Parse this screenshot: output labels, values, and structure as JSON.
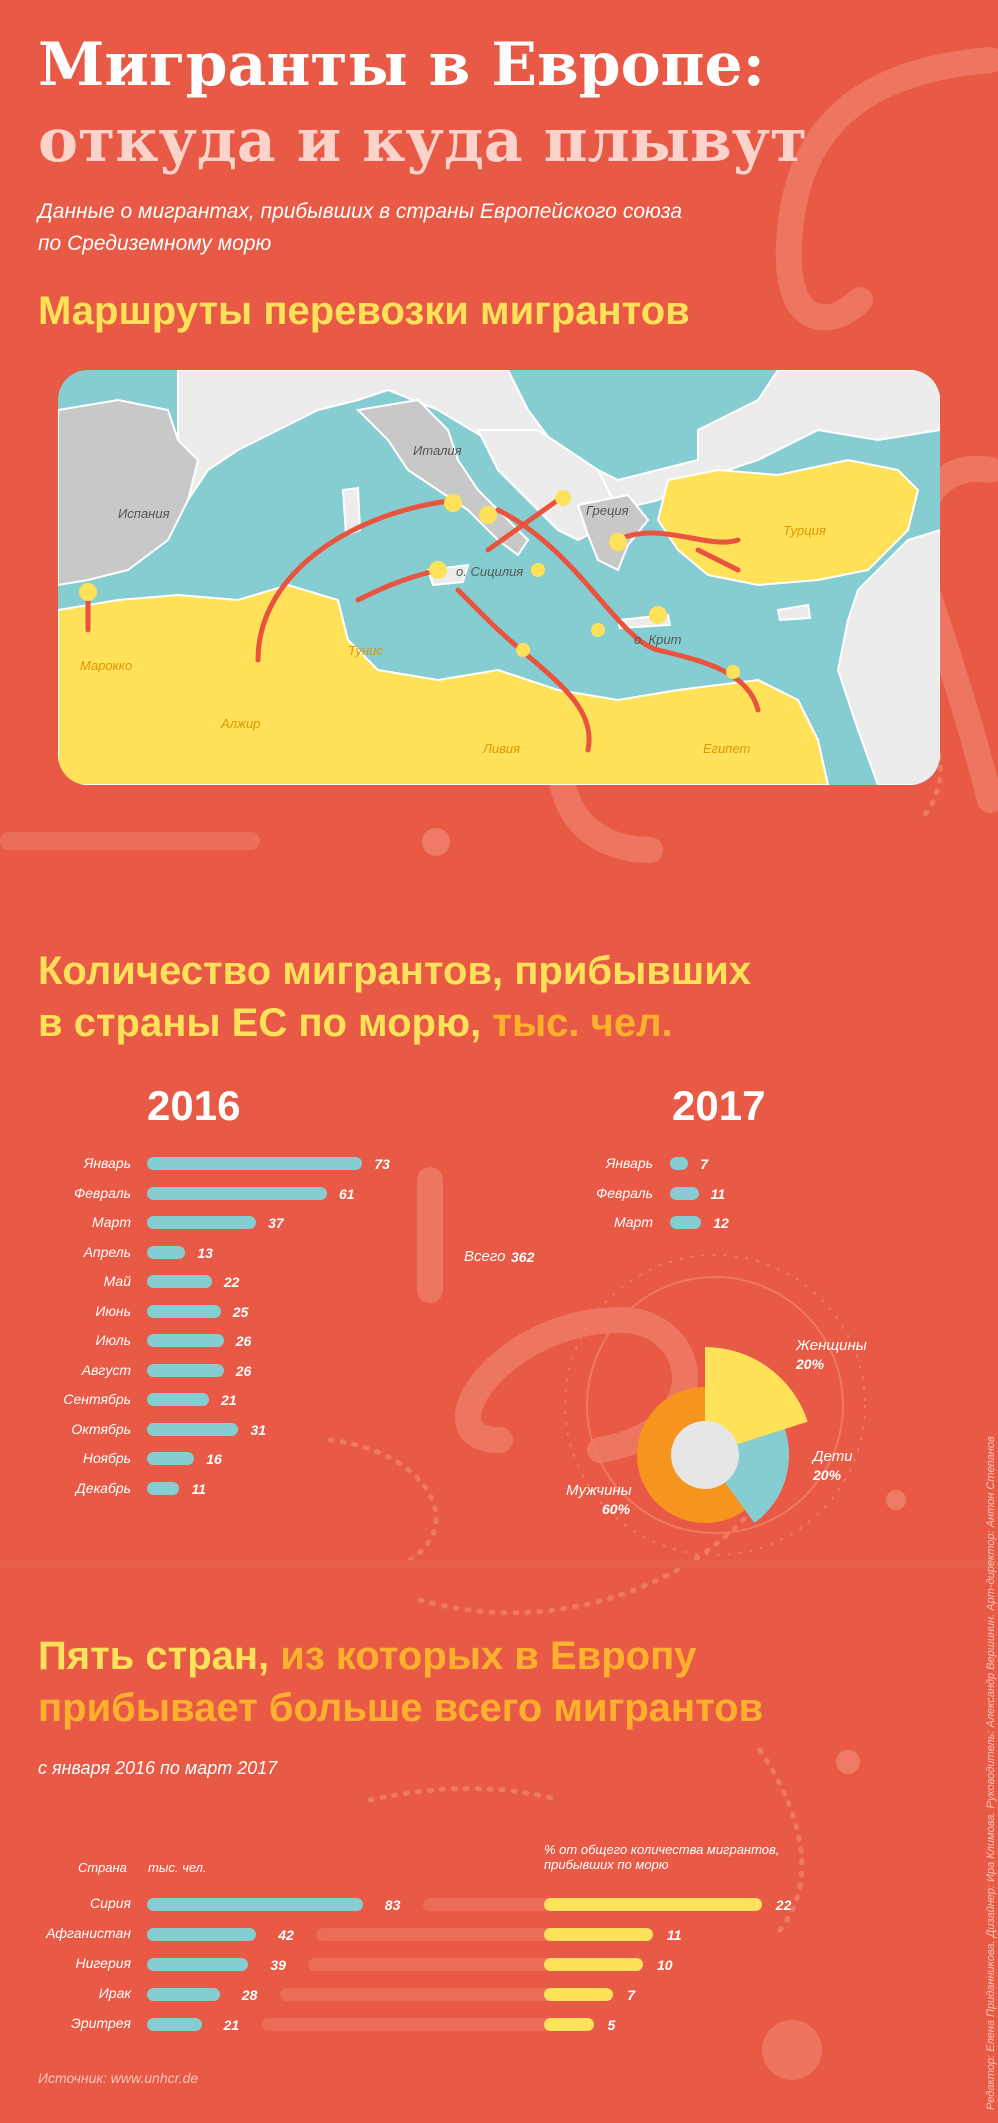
{
  "header": {
    "title_line1": "Мигранты в Европе:",
    "title_line2": "откуда и куда плывут",
    "subtitle_line1": "Данные о мигрантах, прибывших в страны Европейского союза",
    "subtitle_line2": "по Средиземному морю"
  },
  "map": {
    "title": "Маршруты перевозки мигрантов",
    "labels": {
      "spain": "Испания",
      "italy": "Италия",
      "greece": "Греция",
      "turkey": "Турция",
      "morocco": "Марокко",
      "algeria": "Алжир",
      "tunisia": "Тунис",
      "libya": "Ливия",
      "egypt": "Египет",
      "sicily": "о. Сицилия",
      "crete": "о. Крит"
    },
    "colors": {
      "sea": "#86cdd2",
      "europe": "#c8c8c8",
      "europe_light": "#ececec",
      "origin": "#ffe15a",
      "route": "#e8543e"
    }
  },
  "arrivals": {
    "title_line1": "Количество мигрантов, прибывших",
    "title_line2_main": "в страны ЕС по морю,",
    "title_line2_unit": "тыс. чел.",
    "total_label": "Всего",
    "total_value": "362"
  },
  "breakdown": {
    "labels": {
      "women": "Женщины",
      "children": "Дети",
      "men": "Мужчины"
    },
    "values_text": {
      "women": "20%",
      "children": "20%",
      "men": "60%"
    }
  },
  "countries": {
    "title_line1_main": "Пять стран,",
    "title_line1_accent": "из которых в Европу",
    "title_line2": "прибывает больше всего мигрантов",
    "period": "с января 2016 по март 2017",
    "col_country": "Страна",
    "col_thousands": "тыс. чел.",
    "col_percent_line1": "% от общего количества мигрантов,",
    "col_percent_line2": "прибывших по морю"
  },
  "footer": {
    "source": "Источник: www.unhcr.de",
    "credits": "Редактор: Елена Приданникова. Дизайнер: Ира Климова. Руководитель: Александр Вершинин. Арт-директор: Антон Степанов"
  },
  "chart_data": [
    {
      "type": "bar",
      "title": "2016",
      "categories": [
        "Январь",
        "Февраль",
        "Март",
        "Апрель",
        "Май",
        "Июнь",
        "Июль",
        "Август",
        "Сентябрь",
        "Октябрь",
        "Ноябрь",
        "Декабрь"
      ],
      "values": [
        73,
        61,
        37,
        13,
        22,
        25,
        26,
        26,
        21,
        31,
        16,
        11
      ],
      "color": "#86cdd2"
    },
    {
      "type": "bar",
      "title": "2017",
      "categories": [
        "Январь",
        "Февраль",
        "Март"
      ],
      "values": [
        7,
        11,
        12
      ],
      "color": "#86cdd2"
    },
    {
      "type": "pie",
      "categories": [
        "Женщины",
        "Дети",
        "Мужчины"
      ],
      "values": [
        20,
        20,
        60
      ],
      "colors": [
        "#ffe15a",
        "#86cdd2",
        "#f7941d"
      ]
    },
    {
      "type": "bar",
      "title": "тыс. чел.",
      "categories": [
        "Сирия",
        "Афганистан",
        "Нигерия",
        "Ирак",
        "Эритрея"
      ],
      "values": [
        83,
        42,
        39,
        28,
        21
      ],
      "color": "#86cdd2"
    },
    {
      "type": "bar",
      "title": "% от общего количества мигрантов, прибывших по морю",
      "categories": [
        "Сирия",
        "Афганистан",
        "Нигерия",
        "Ирак",
        "Эритрея"
      ],
      "values": [
        22,
        11,
        10,
        7,
        5
      ],
      "color": "#ffe15a"
    }
  ]
}
